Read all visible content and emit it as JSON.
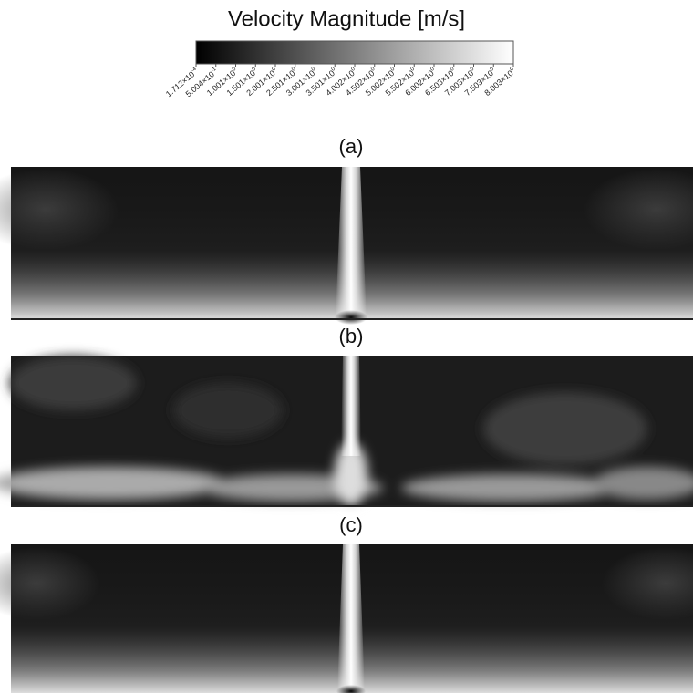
{
  "title": "Velocity Magnitude [m/s]",
  "colorbar": {
    "lim": [
      0.0001712,
      8.003
    ],
    "ticks": [
      {
        "value": 0.0001712,
        "label": "1.712×10",
        "exponent": "-4"
      },
      {
        "value": 0.5004,
        "label": "5.004×10",
        "exponent": "-1"
      },
      {
        "value": 1.001,
        "label": "1.001×10",
        "exponent": "0"
      },
      {
        "value": 1.501,
        "label": "1.501×10",
        "exponent": "0"
      },
      {
        "value": 2.001,
        "label": "2.001×10",
        "exponent": "0"
      },
      {
        "value": 2.501,
        "label": "2.501×10",
        "exponent": "0"
      },
      {
        "value": 3.001,
        "label": "3.001×10",
        "exponent": "0"
      },
      {
        "value": 3.501,
        "label": "3.501×10",
        "exponent": "0"
      },
      {
        "value": 4.002,
        "label": "4.002×10",
        "exponent": "0"
      },
      {
        "value": 4.502,
        "label": "4.502×10",
        "exponent": "0"
      },
      {
        "value": 5.002,
        "label": "5.002×10",
        "exponent": "0"
      },
      {
        "value": 5.502,
        "label": "5.502×10",
        "exponent": "0"
      },
      {
        "value": 6.002,
        "label": "6.002×10",
        "exponent": "0"
      },
      {
        "value": 6.503,
        "label": "6.503×10",
        "exponent": "0"
      },
      {
        "value": 7.003,
        "label": "7.003×10",
        "exponent": "0"
      },
      {
        "value": 7.503,
        "label": "7.503×10",
        "exponent": "0"
      },
      {
        "value": 8.003,
        "label": "8.003×10",
        "exponent": "0"
      }
    ]
  },
  "panels": [
    {
      "label": "(a)"
    },
    {
      "label": "(b)"
    },
    {
      "label": "(c)"
    }
  ]
}
